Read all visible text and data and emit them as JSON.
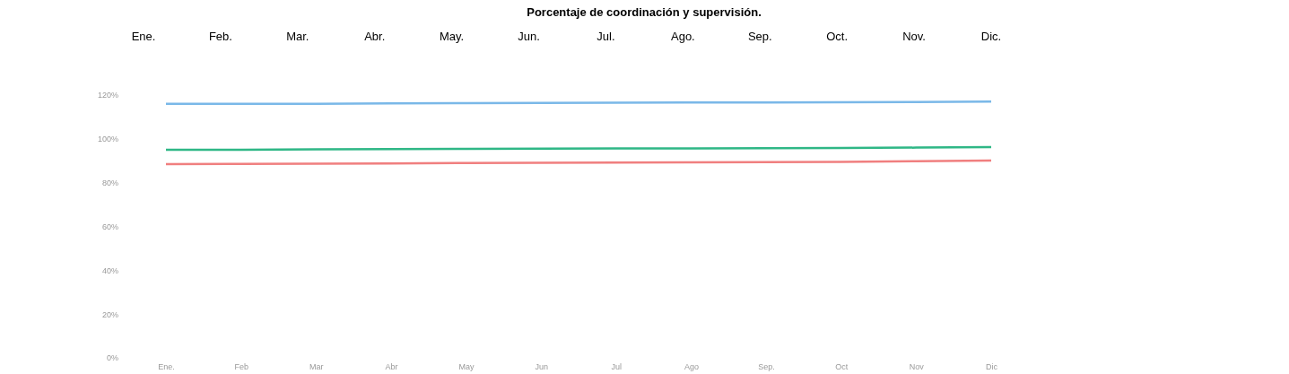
{
  "chart_data": {
    "type": "line",
    "title": "Porcentaje de coordinación y supervisión.",
    "annotations": [
      "Ene.",
      "Feb.",
      "Mar.",
      "Abr.",
      "May.",
      "Jun.",
      "Jul.",
      "Ago.",
      "Sep.",
      "Oct.",
      "Nov.",
      "Dic."
    ],
    "categories": [
      "Ene.",
      "Feb",
      "Mar",
      "Abr",
      "May",
      "Jun",
      "Jul",
      "Ago",
      "Sep.",
      "Oct",
      "Nov",
      "Dic"
    ],
    "series": [
      {
        "color": "#7ab8e8",
        "values": [
          116,
          116,
          116,
          116.2,
          116.3,
          116.4,
          116.5,
          116.6,
          116.6,
          116.7,
          116.8,
          117
        ]
      },
      {
        "color": "#2fb786",
        "values": [
          95,
          95,
          95.2,
          95.3,
          95.4,
          95.5,
          95.6,
          95.6,
          95.7,
          95.8,
          96,
          96.2
        ]
      },
      {
        "color": "#f07f7f",
        "values": [
          88.5,
          88.6,
          88.7,
          88.8,
          89,
          89.1,
          89.2,
          89.3,
          89.4,
          89.5,
          89.8,
          90.1
        ]
      }
    ],
    "ylim": [
      0,
      120
    ],
    "yticks": [
      {
        "value": 0,
        "label": "0%"
      },
      {
        "value": 20,
        "label": "20%"
      },
      {
        "value": 40,
        "label": "40%"
      },
      {
        "value": 60,
        "label": "60%"
      },
      {
        "value": 80,
        "label": "80%"
      },
      {
        "value": 100,
        "label": "100%"
      },
      {
        "value": 120,
        "label": "120%"
      }
    ],
    "marker": "none",
    "line_style": "solid"
  }
}
